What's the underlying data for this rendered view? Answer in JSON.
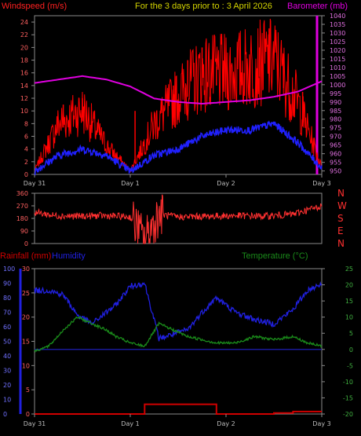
{
  "colors": {
    "background": "#000000",
    "windspeed": "#ff2020",
    "gust": "#ff0000",
    "wind_avg": "#2020ff",
    "barometer": "#e000e0",
    "title": "#d4d400",
    "direction": "#ff3030",
    "rainfall": "#d00000",
    "humidity": "#2020e0",
    "temperature": "#1a8a1a",
    "zero_line": "#1a1a9a",
    "axis": "#8a8a8a",
    "tick_text": "#bbbbbb"
  },
  "header": {
    "windspeed_label": "Windspeed (m/s)",
    "title": "For the 3 days prior to : 3 April 2026",
    "barometer_label": "Barometer (mb)"
  },
  "lower_header": {
    "rainfall_label": "Rainfall (mm)",
    "humidity_label": "Humidity",
    "temperature_label": "Temperature (°C)"
  },
  "chart_data": [
    {
      "type": "line",
      "title": "For the 3 days prior to : 3 April 2026",
      "ylabel": "Windspeed (m/s)",
      "y2label": "Barometer (mb)",
      "x": [
        0,
        0.25,
        0.5,
        0.75,
        1.0,
        1.25,
        1.5,
        1.75,
        2.0,
        2.25,
        2.5,
        2.75,
        3.0
      ],
      "xlim": [
        0,
        3
      ],
      "ylim": [
        0,
        25
      ],
      "y2lim": [
        948,
        1040
      ],
      "yticks": [
        "0",
        "2",
        "4",
        "6",
        "8",
        "10",
        "12",
        "14",
        "16",
        "18",
        "20",
        "22",
        "24"
      ],
      "y2ticks": [
        "950",
        "955",
        "960",
        "965",
        "970",
        "975",
        "980",
        "985",
        "990",
        "995",
        "1000",
        "1005",
        "1010",
        "1015",
        "1020",
        "1025",
        "1030",
        "1035",
        "1040"
      ],
      "xtick_labels": [
        "Day 31",
        "Day 1",
        "Day 2",
        "Day 3"
      ],
      "series": [
        {
          "name": "Windspeed (m/s)",
          "values": [
            0.5,
            7,
            9,
            4,
            0.5,
            7,
            11,
            14,
            14,
            15,
            16,
            10,
            1
          ]
        },
        {
          "name": "Barometer (mb)",
          "values": [
            1001,
            1003,
            1005,
            1003,
            999,
            992,
            990,
            989,
            990,
            991,
            993,
            996,
            1002
          ]
        }
      ],
      "wind_avg": [
        0.5,
        3,
        4,
        3,
        0.5,
        3,
        4,
        6,
        7,
        7,
        8,
        5,
        1
      ],
      "gust_spikes": [
        [
          0.3,
          11
        ],
        [
          0.5,
          12
        ],
        [
          1.05,
          10
        ],
        [
          1.45,
          14
        ],
        [
          1.6,
          18
        ],
        [
          1.75,
          20
        ],
        [
          1.9,
          17
        ],
        [
          2.15,
          17.5
        ],
        [
          2.35,
          20
        ],
        [
          2.45,
          23
        ],
        [
          2.6,
          19
        ],
        [
          2.8,
          13
        ]
      ],
      "grid": false
    },
    {
      "type": "line",
      "title": "",
      "ylabel": "Wind direction",
      "x": [
        0,
        0.2,
        0.45,
        0.7,
        1.0,
        1.15,
        1.3,
        1.5,
        1.8,
        2.1,
        2.4,
        2.7,
        3.0
      ],
      "xlim": [
        0,
        3
      ],
      "ylim": [
        0,
        360
      ],
      "yticks": [
        "0",
        "90",
        "180",
        "270",
        "360"
      ],
      "compass": [
        "N",
        "W",
        "S",
        "E",
        "N"
      ],
      "series": [
        {
          "name": "",
          "values": [
            225,
            200,
            195,
            200,
            190,
            30,
            210,
            190,
            195,
            200,
            195,
            210,
            270
          ]
        }
      ],
      "grid": false
    },
    {
      "type": "line",
      "title": "",
      "ylabel": "Rainfall (mm)",
      "x": [
        0,
        0.15,
        0.3,
        0.45,
        0.6,
        0.75,
        0.85,
        1.0,
        1.15,
        1.3,
        1.45,
        1.6,
        1.75,
        1.9,
        2.1,
        2.3,
        2.5,
        2.7,
        2.85,
        3.0
      ],
      "xlim": [
        0,
        3
      ],
      "rain_ylim": [
        0,
        30
      ],
      "humidity_ylim": [
        0,
        100
      ],
      "temperature_ylim": [
        -20,
        25
      ],
      "rain_yticks": [
        "0",
        "5",
        "10",
        "15",
        "20",
        "25",
        "30"
      ],
      "humidity_yticks": [
        "0",
        "10",
        "20",
        "30",
        "40",
        "50",
        "60",
        "70",
        "80",
        "90",
        "100"
      ],
      "temperature_yticks": [
        "-20",
        "-15",
        "-10",
        "-5",
        "0",
        "5",
        "10",
        "15",
        "20",
        "25"
      ],
      "xtick_labels": [
        "Day 31",
        "Day 1",
        "Day 2",
        "Day 3"
      ],
      "series": [
        {
          "name": "Humidity",
          "values": [
            85,
            85,
            82,
            68,
            62,
            70,
            75,
            88,
            90,
            52,
            55,
            58,
            70,
            80,
            70,
            65,
            62,
            72,
            85,
            90
          ]
        },
        {
          "name": "Temperature (°C)",
          "values": [
            -0.5,
            1,
            6,
            10,
            8,
            6,
            4,
            2,
            1,
            8,
            6,
            4,
            3,
            2,
            2,
            4,
            3,
            4,
            2,
            1
          ]
        },
        {
          "name": "Rainfall (mm)",
          "values": [
            0,
            0,
            0,
            0,
            0,
            0,
            0,
            0,
            2,
            2,
            2,
            2,
            2,
            0,
            0,
            0,
            0.2,
            0.5,
            0.5,
            0.5
          ]
        }
      ],
      "grid": false
    }
  ]
}
